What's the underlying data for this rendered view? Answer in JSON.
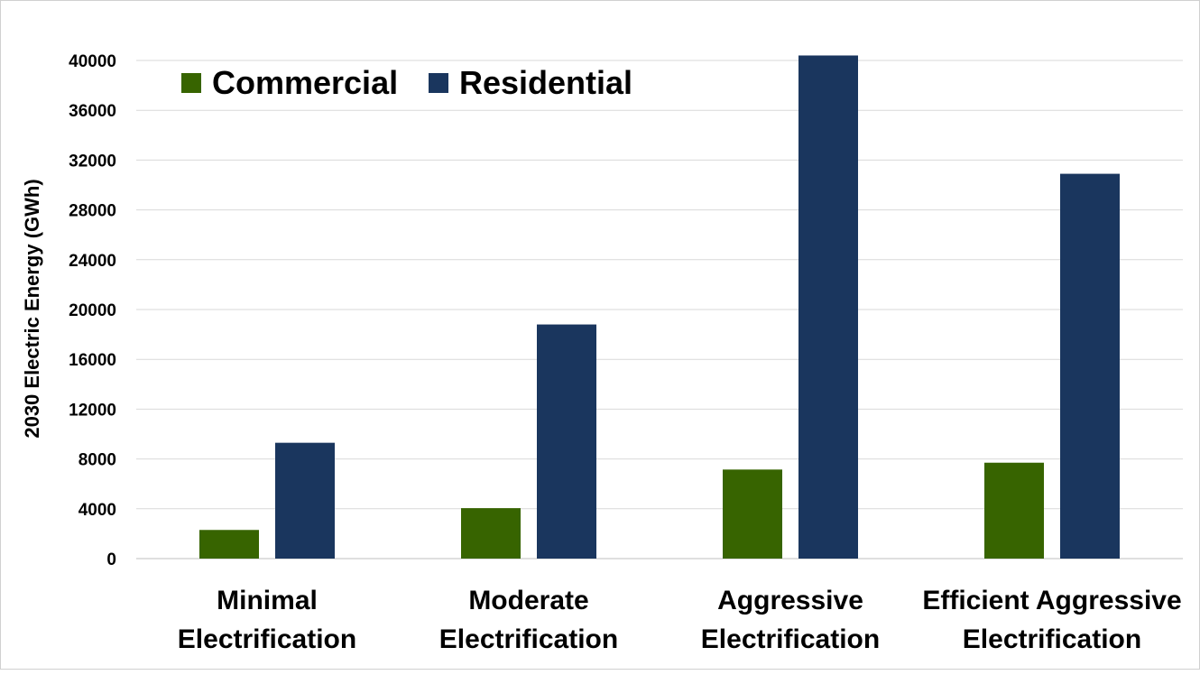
{
  "chart_data": {
    "type": "bar",
    "title": "",
    "categories": [
      [
        "Minimal",
        "Electrification"
      ],
      [
        "Moderate",
        "Electrification"
      ],
      [
        "Aggressive",
        "Electrification"
      ],
      [
        "Efficient Aggressive",
        "Electrification"
      ]
    ],
    "series": [
      {
        "name": "Commercial",
        "values": [
          2300,
          4050,
          7150,
          7700
        ]
      },
      {
        "name": "Residential",
        "values": [
          9300,
          18800,
          40400,
          30900
        ]
      }
    ],
    "xlabel": "",
    "ylabel": "2030 Electric Energy (GWh)",
    "ylim": [
      0,
      40000
    ],
    "yticks": [
      0,
      4000,
      8000,
      12000,
      16000,
      20000,
      24000,
      28000,
      32000,
      36000,
      40000
    ],
    "grid": true,
    "legend_position": "top-left",
    "colors": {
      "Commercial": "#376400",
      "Residential": "#1a365e",
      "grid": "#d9d9d9",
      "axis": "#bfbfbf",
      "text": "#000000"
    }
  }
}
